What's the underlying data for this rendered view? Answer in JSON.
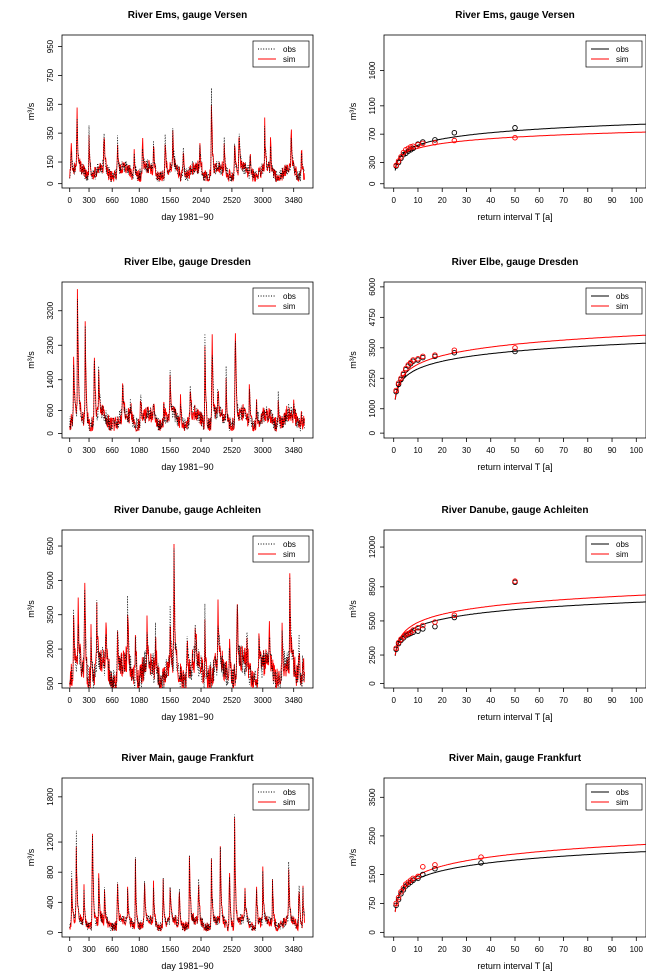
{
  "colors": {
    "obs": "#000000",
    "sim": "#ff0000"
  },
  "chart_data": [
    {
      "type": "line",
      "title": "River Ems, gauge Versen",
      "xlabel": "day 1981−90",
      "ylabel": "m³/s",
      "xlim": [
        -120,
        3780
      ],
      "ylim": [
        -30,
        1030
      ],
      "xticks": [
        0,
        300,
        660,
        1080,
        1560,
        2040,
        2520,
        3000,
        3480
      ],
      "yticks": [
        0,
        150,
        350,
        550,
        750,
        950
      ],
      "legend": {
        "position": "top-right",
        "entries": [
          {
            "label": "obs",
            "style": "dotted"
          },
          {
            "label": "sim",
            "style": "solid"
          }
        ]
      },
      "baseline": 100,
      "peaks": [
        [
          20,
          300
        ],
        [
          110,
          600
        ],
        [
          300,
          380
        ],
        [
          530,
          380
        ],
        [
          740,
          350
        ],
        [
          1000,
          280
        ],
        [
          1130,
          330
        ],
        [
          1300,
          290
        ],
        [
          1480,
          350
        ],
        [
          1600,
          370
        ],
        [
          1760,
          300
        ],
        [
          2020,
          280
        ],
        [
          2200,
          700
        ],
        [
          2400,
          270
        ],
        [
          2560,
          330
        ],
        [
          2630,
          400
        ],
        [
          2800,
          250
        ],
        [
          3030,
          350
        ],
        [
          3120,
          250
        ],
        [
          3440,
          380
        ],
        [
          3600,
          280
        ]
      ],
      "series": [
        {
          "name": "obs",
          "style": "dotted"
        },
        {
          "name": "sim",
          "style": "solid"
        }
      ]
    },
    {
      "type": "line",
      "title": "River Ems, gauge Versen",
      "xlabel": "return interval T [a]",
      "ylabel": "m³/s",
      "xlim": [
        -4,
        104
      ],
      "ylim": [
        -60,
        2100
      ],
      "xticks": [
        0,
        10,
        20,
        30,
        40,
        50,
        60,
        70,
        80,
        90,
        100
      ],
      "yticks": [
        0,
        300,
        700,
        1100,
        1600
      ],
      "legend": {
        "position": "top-right",
        "entries": [
          {
            "label": "obs",
            "style": "solid"
          },
          {
            "label": "sim",
            "style": "solid"
          }
        ]
      },
      "series": [
        {
          "name": "obs",
          "a": 252,
          "b": 127
        },
        {
          "name": "sim",
          "a": 275,
          "b": 98
        }
      ],
      "points": {
        "obs": [
          [
            1,
            250
          ],
          [
            2,
            300
          ],
          [
            3,
            360
          ],
          [
            4,
            410
          ],
          [
            5,
            430
          ],
          [
            6,
            460
          ],
          [
            7,
            480
          ],
          [
            8,
            500
          ],
          [
            10,
            560
          ],
          [
            12,
            590
          ],
          [
            17,
            620
          ],
          [
            25,
            720
          ],
          [
            50,
            790
          ]
        ],
        "sim": [
          [
            1,
            260
          ],
          [
            2,
            320
          ],
          [
            3,
            380
          ],
          [
            4,
            440
          ],
          [
            5,
            480
          ],
          [
            6,
            500
          ],
          [
            7,
            520
          ],
          [
            8,
            530
          ],
          [
            10,
            550
          ],
          [
            12,
            570
          ],
          [
            17,
            580
          ],
          [
            25,
            610
          ],
          [
            50,
            650
          ]
        ]
      }
    },
    {
      "type": "line",
      "title": "River Elbe, gauge Dresden",
      "xlabel": "day 1981−90",
      "ylabel": "m³/s",
      "xlim": [
        -120,
        3780
      ],
      "ylim": [
        -120,
        3950
      ],
      "xticks": [
        0,
        300,
        660,
        1080,
        1560,
        2040,
        2520,
        3000,
        3480
      ],
      "yticks": [
        0,
        600,
        1400,
        2300,
        3200
      ],
      "legend": {
        "position": "top-right",
        "entries": [
          {
            "label": "obs",
            "style": "dotted"
          },
          {
            "label": "sim",
            "style": "solid"
          }
        ]
      },
      "baseline": 450,
      "peaks": [
        [
          60,
          2000
        ],
        [
          120,
          3500
        ],
        [
          240,
          2800
        ],
        [
          380,
          2700
        ],
        [
          450,
          1600
        ],
        [
          820,
          1300
        ],
        [
          940,
          800
        ],
        [
          1100,
          1100
        ],
        [
          1300,
          800
        ],
        [
          1460,
          900
        ],
        [
          1560,
          1200
        ],
        [
          1720,
          1100
        ],
        [
          1870,
          1300
        ],
        [
          2100,
          2400
        ],
        [
          2210,
          3050
        ],
        [
          2300,
          1200
        ],
        [
          2430,
          1500
        ],
        [
          2570,
          3500
        ],
        [
          2790,
          1300
        ],
        [
          2900,
          900
        ],
        [
          3240,
          1000
        ],
        [
          3480,
          700
        ],
        [
          3600,
          500
        ]
      ],
      "series": [
        {
          "name": "obs",
          "style": "dotted"
        },
        {
          "name": "sim",
          "style": "solid"
        }
      ]
    },
    {
      "type": "line",
      "title": "River Elbe, gauge Dresden",
      "xlabel": "return interval T [a]",
      "ylabel": "m³/s",
      "xlim": [
        -4,
        104
      ],
      "ylim": [
        -200,
        6200
      ],
      "xticks": [
        0,
        10,
        20,
        30,
        40,
        50,
        60,
        70,
        80,
        90,
        100
      ],
      "yticks": [
        0,
        1000,
        2250,
        3500,
        4750,
        6000
      ],
      "legend": {
        "position": "top-right",
        "entries": [
          {
            "label": "obs",
            "style": "solid"
          },
          {
            "label": "sim",
            "style": "solid"
          }
        ]
      },
      "series": [
        {
          "name": "obs",
          "a": 1600,
          "b": 450
        },
        {
          "name": "sim",
          "a": 1650,
          "b": 510
        }
      ],
      "points": {
        "obs": [
          [
            1,
            1700
          ],
          [
            2,
            2000
          ],
          [
            3,
            2200
          ],
          [
            4,
            2400
          ],
          [
            5,
            2600
          ],
          [
            6,
            2750
          ],
          [
            7,
            2850
          ],
          [
            8,
            2950
          ],
          [
            10,
            3000
          ],
          [
            12,
            3100
          ],
          [
            17,
            3150
          ],
          [
            25,
            3300
          ],
          [
            50,
            3350
          ]
        ],
        "sim": [
          [
            1,
            1750
          ],
          [
            2,
            2050
          ],
          [
            3,
            2250
          ],
          [
            4,
            2450
          ],
          [
            5,
            2650
          ],
          [
            6,
            2800
          ],
          [
            7,
            2900
          ],
          [
            8,
            3000
          ],
          [
            10,
            3050
          ],
          [
            12,
            3150
          ],
          [
            17,
            3200
          ],
          [
            25,
            3400
          ],
          [
            50,
            3500
          ]
        ]
      }
    },
    {
      "type": "line",
      "title": "River Danube, gauge Achleiten",
      "xlabel": "day 1981−90",
      "ylabel": "m³/s",
      "xlim": [
        -120,
        3780
      ],
      "ylim": [
        300,
        7200
      ],
      "xticks": [
        0,
        300,
        660,
        1080,
        1560,
        2040,
        2520,
        3000,
        3480
      ],
      "yticks": [
        500,
        2000,
        3500,
        5000,
        6500
      ],
      "legend": {
        "position": "top-right",
        "entries": [
          {
            "label": "obs",
            "style": "dotted"
          },
          {
            "label": "sim",
            "style": "solid"
          }
        ]
      },
      "baseline": 1300,
      "peaks": [
        [
          60,
          2500
        ],
        [
          130,
          3300
        ],
        [
          230,
          6200
        ],
        [
          330,
          3000
        ],
        [
          420,
          3500
        ],
        [
          560,
          3000
        ],
        [
          740,
          3500
        ],
        [
          900,
          3300
        ],
        [
          1020,
          3000
        ],
        [
          1200,
          2500
        ],
        [
          1330,
          3000
        ],
        [
          1560,
          2800
        ],
        [
          1620,
          5000
        ],
        [
          1820,
          2800
        ],
        [
          1950,
          2700
        ],
        [
          2100,
          3300
        ],
        [
          2300,
          3500
        ],
        [
          2480,
          3000
        ],
        [
          2600,
          4700
        ],
        [
          2750,
          2800
        ],
        [
          2940,
          3200
        ],
        [
          3100,
          2500
        ],
        [
          3300,
          2800
        ],
        [
          3420,
          4200
        ],
        [
          3560,
          2500
        ],
        [
          3620,
          2000
        ]
      ],
      "series": [
        {
          "name": "obs",
          "style": "dotted"
        },
        {
          "name": "sim",
          "style": "solid"
        }
      ]
    },
    {
      "type": "line",
      "title": "River Danube, gauge Achleiten",
      "xlabel": "return interval T [a]",
      "ylabel": "m³/s",
      "xlim": [
        -4,
        104
      ],
      "ylim": [
        -400,
        13500
      ],
      "xticks": [
        0,
        10,
        20,
        30,
        40,
        50,
        60,
        70,
        80,
        90,
        100
      ],
      "yticks": [
        0,
        2500,
        5500,
        8500,
        12000
      ],
      "legend": {
        "position": "top-right",
        "entries": [
          {
            "label": "obs",
            "style": "solid"
          },
          {
            "label": "sim",
            "style": "solid"
          }
        ]
      },
      "series": [
        {
          "name": "obs",
          "a": 2900,
          "b": 920
        },
        {
          "name": "sim",
          "a": 3000,
          "b": 1030
        }
      ],
      "points": {
        "obs": [
          [
            1,
            3000
          ],
          [
            2,
            3500
          ],
          [
            3,
            3800
          ],
          [
            4,
            4000
          ],
          [
            5,
            4200
          ],
          [
            6,
            4300
          ],
          [
            7,
            4400
          ],
          [
            8,
            4500
          ],
          [
            10,
            4600
          ],
          [
            12,
            4800
          ],
          [
            17,
            5000
          ],
          [
            25,
            5800
          ],
          [
            50,
            8900
          ]
        ],
        "sim": [
          [
            1,
            3100
          ],
          [
            2,
            3600
          ],
          [
            3,
            3900
          ],
          [
            4,
            4100
          ],
          [
            5,
            4300
          ],
          [
            6,
            4400
          ],
          [
            7,
            4500
          ],
          [
            8,
            4700
          ],
          [
            10,
            4900
          ],
          [
            12,
            5100
          ],
          [
            17,
            5400
          ],
          [
            25,
            6000
          ],
          [
            50,
            9000
          ]
        ]
      }
    },
    {
      "type": "line",
      "title": "River Main, gauge Frankfurt",
      "xlabel": "day 1981−90",
      "ylabel": "m³/s",
      "xlim": [
        -120,
        3780
      ],
      "ylim": [
        -60,
        2050
      ],
      "xticks": [
        0,
        300,
        660,
        1080,
        1560,
        2040,
        2520,
        3000,
        3480
      ],
      "yticks": [
        0,
        400,
        800,
        1200,
        1800
      ],
      "legend": {
        "position": "top-right",
        "entries": [
          {
            "label": "obs",
            "style": "dotted"
          },
          {
            "label": "sim",
            "style": "solid"
          }
        ]
      },
      "baseline": 150,
      "peaks": [
        [
          30,
          700
        ],
        [
          100,
          1300
        ],
        [
          220,
          600
        ],
        [
          350,
          1800
        ],
        [
          450,
          700
        ],
        [
          540,
          500
        ],
        [
          740,
          800
        ],
        [
          900,
          500
        ],
        [
          1020,
          1000
        ],
        [
          1160,
          800
        ],
        [
          1300,
          700
        ],
        [
          1450,
          800
        ],
        [
          1560,
          600
        ],
        [
          1700,
          700
        ],
        [
          1860,
          1000
        ],
        [
          2000,
          800
        ],
        [
          2200,
          1100
        ],
        [
          2340,
          1000
        ],
        [
          2480,
          1000
        ],
        [
          2560,
          1750
        ],
        [
          2720,
          700
        ],
        [
          2900,
          800
        ],
        [
          3000,
          700
        ],
        [
          3150,
          700
        ],
        [
          3400,
          1000
        ],
        [
          3560,
          800
        ],
        [
          3620,
          700
        ]
      ],
      "series": [
        {
          "name": "obs",
          "style": "dotted"
        },
        {
          "name": "sim",
          "style": "solid"
        }
      ]
    },
    {
      "type": "line",
      "title": "River Main, gauge Frankfurt",
      "xlabel": "return interval T [a]",
      "ylabel": "m³/s",
      "xlim": [
        -4,
        104
      ],
      "ylim": [
        -120,
        4000
      ],
      "xticks": [
        0,
        10,
        20,
        30,
        40,
        50,
        60,
        70,
        80,
        90,
        100
      ],
      "yticks": [
        0,
        750,
        1500,
        2500,
        3500
      ],
      "legend": {
        "position": "top-right",
        "entries": [
          {
            "label": "obs",
            "style": "solid"
          },
          {
            "label": "sim",
            "style": "solid"
          }
        ]
      },
      "series": [
        {
          "name": "obs",
          "a": 700,
          "b": 300
        },
        {
          "name": "sim",
          "a": 700,
          "b": 340
        }
      ],
      "points": {
        "obs": [
          [
            1,
            700
          ],
          [
            2,
            850
          ],
          [
            3,
            1000
          ],
          [
            4,
            1100
          ],
          [
            5,
            1200
          ],
          [
            6,
            1250
          ],
          [
            7,
            1300
          ],
          [
            8,
            1350
          ],
          [
            10,
            1400
          ],
          [
            12,
            1500
          ],
          [
            17,
            1650
          ],
          [
            36,
            1800
          ]
        ],
        "sim": [
          [
            1,
            750
          ],
          [
            2,
            900
          ],
          [
            3,
            1050
          ],
          [
            4,
            1150
          ],
          [
            5,
            1250
          ],
          [
            6,
            1300
          ],
          [
            7,
            1350
          ],
          [
            8,
            1400
          ],
          [
            10,
            1450
          ],
          [
            12,
            1700
          ],
          [
            17,
            1750
          ],
          [
            36,
            1950
          ]
        ]
      }
    }
  ]
}
